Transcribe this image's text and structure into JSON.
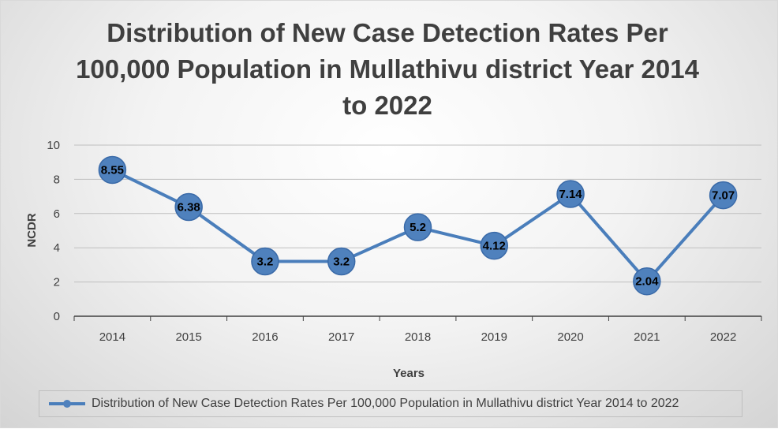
{
  "chart_data": {
    "type": "line",
    "title": "Distribution of New Case Detection Rates Per 100,000 Population in Mullathivu district Year 2014 to 2022",
    "xlabel": "Years",
    "ylabel": "NCDR",
    "categories": [
      "2014",
      "2015",
      "2016",
      "2017",
      "2018",
      "2019",
      "2020",
      "2021",
      "2022"
    ],
    "series": [
      {
        "name": "Distribution of New Case Detection Rates Per 100,000 Population in Mullathivu district Year 2014 to 2022",
        "values": [
          8.55,
          6.38,
          3.2,
          3.2,
          5.2,
          4.12,
          7.14,
          2.04,
          7.07
        ],
        "data_labels": [
          "8.55",
          "6.38",
          "3.2",
          "3.2",
          "5.2",
          "4.12",
          "7.14",
          "2.04",
          "7.07"
        ]
      }
    ],
    "yticks": [
      "0",
      "2",
      "4",
      "6",
      "8",
      "10"
    ],
    "ylim": [
      0,
      10
    ],
    "grid": true,
    "legend_position": "bottom",
    "colors": {
      "series": "#4a7ebb",
      "marker": "#4f81bd",
      "grid": "#bfbfbf",
      "axis": "#404040"
    }
  }
}
